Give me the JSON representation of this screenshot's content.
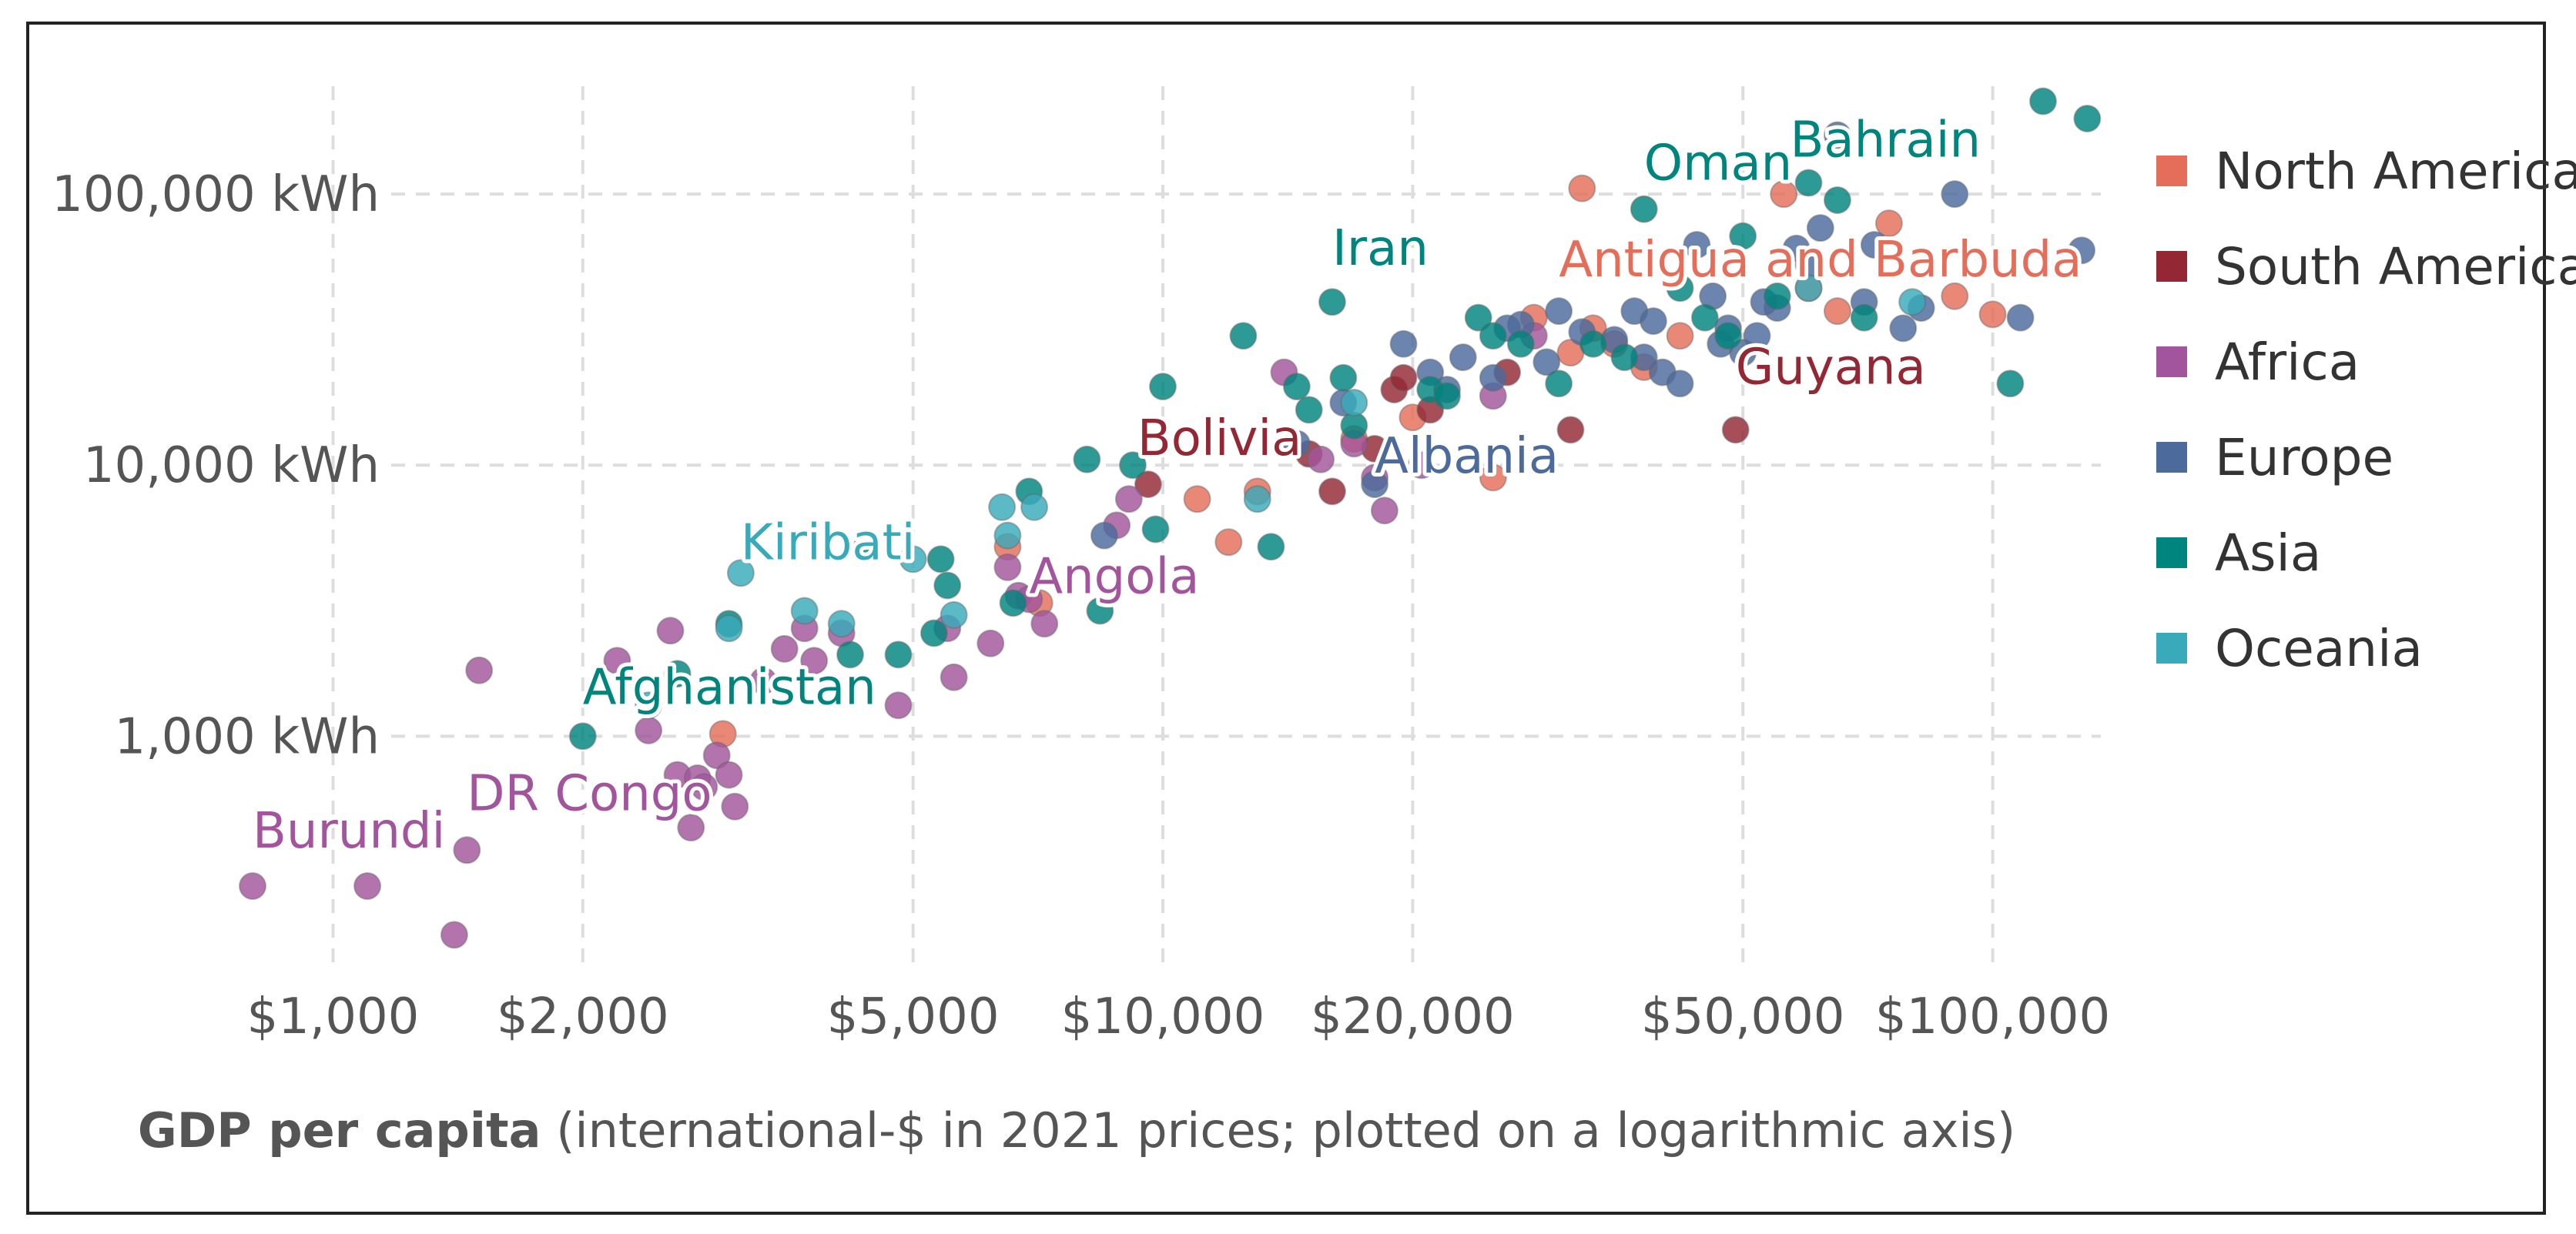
{
  "colors": {
    "North America": "#e56e5a",
    "South America": "#932834",
    "Africa": "#a2559c",
    "Europe": "#4c6a9c",
    "Asia": "#00847e",
    "Oceania": "#38aaba",
    "grid": "#dddddd"
  },
  "chart_data": {
    "type": "scatter",
    "xscale": "log",
    "yscale": "log",
    "xlim": [
      800,
      135000
    ],
    "ylim": [
      140,
      250000
    ],
    "grid": true,
    "legend_position": "right",
    "x_ticks": [
      {
        "value": 1000,
        "label": "$1,000"
      },
      {
        "value": 2000,
        "label": "$2,000"
      },
      {
        "value": 5000,
        "label": "$5,000"
      },
      {
        "value": 10000,
        "label": "$10,000"
      },
      {
        "value": 20000,
        "label": "$20,000"
      },
      {
        "value": 50000,
        "label": "$50,000"
      },
      {
        "value": 100000,
        "label": "$100,000"
      }
    ],
    "y_ticks": [
      {
        "value": 1000,
        "label": "1,000 kWh"
      },
      {
        "value": 10000,
        "label": "10,000 kWh"
      },
      {
        "value": 100000,
        "label": "100,000 kWh"
      }
    ],
    "xlabel_bold": "GDP per capita",
    "xlabel_rest": " (international-$ in 2021 prices; plotted on a logarithmic axis)",
    "series": [
      {
        "name": "North America",
        "points": [
          [
            2950,
            1020
          ],
          [
            6500,
            5000
          ],
          [
            7100,
            3100
          ],
          [
            11000,
            7500
          ],
          [
            12000,
            5200
          ],
          [
            13000,
            8000
          ],
          [
            17000,
            12500
          ],
          [
            20000,
            15000
          ],
          [
            25000,
            9000
          ],
          [
            28000,
            35000
          ],
          [
            31000,
            26000
          ],
          [
            32000,
            105000
          ],
          [
            35000,
            28000
          ],
          [
            38000,
            23000
          ],
          [
            42000,
            30000
          ],
          [
            56000,
            100000
          ],
          [
            65000,
            37000
          ],
          [
            75000,
            78000
          ],
          [
            90000,
            42000
          ],
          [
            100000,
            36000
          ],
          [
            60000,
            45000
          ],
          [
            33000,
            32000
          ]
        ]
      },
      {
        "name": "South America",
        "points": [
          [
            9600,
            8500
          ],
          [
            15000,
            11000
          ],
          [
            16000,
            8000
          ],
          [
            19000,
            19000
          ],
          [
            19500,
            21000
          ],
          [
            21000,
            16000
          ],
          [
            26000,
            22000
          ],
          [
            31000,
            13500
          ],
          [
            49000,
            13500
          ],
          [
            18000,
            11500
          ]
        ]
      },
      {
        "name": "Africa",
        "points": [
          [
            800,
            280
          ],
          [
            1100,
            280
          ],
          [
            1400,
            185
          ],
          [
            1500,
            1750
          ],
          [
            1450,
            380
          ],
          [
            2200,
            1900
          ],
          [
            2400,
            1050
          ],
          [
            2550,
            2450
          ],
          [
            2600,
            720
          ],
          [
            2700,
            460
          ],
          [
            2750,
            700
          ],
          [
            2800,
            650
          ],
          [
            2900,
            850
          ],
          [
            3000,
            720
          ],
          [
            3050,
            550
          ],
          [
            3300,
            1600
          ],
          [
            3500,
            2100
          ],
          [
            3700,
            2500
          ],
          [
            3800,
            1900
          ],
          [
            4100,
            2400
          ],
          [
            4800,
            1300
          ],
          [
            5500,
            2500
          ],
          [
            5600,
            1650
          ],
          [
            6200,
            2200
          ],
          [
            6500,
            4200
          ],
          [
            6700,
            3300
          ],
          [
            6900,
            3200
          ],
          [
            7200,
            2600
          ],
          [
            8800,
            6000
          ],
          [
            9100,
            7500
          ],
          [
            14000,
            22000
          ],
          [
            17000,
            12000
          ],
          [
            18500,
            6800
          ],
          [
            18000,
            9000
          ],
          [
            28000,
            30000
          ],
          [
            25000,
            18000
          ],
          [
            15500,
            10500
          ],
          [
            20500,
            10000
          ]
        ]
      },
      {
        "name": "Europe",
        "points": [
          [
            8500,
            5500
          ],
          [
            14500,
            12000
          ],
          [
            16500,
            17000
          ],
          [
            18000,
            8500
          ],
          [
            19500,
            28000
          ],
          [
            21000,
            22000
          ],
          [
            23000,
            25000
          ],
          [
            25000,
            21000
          ],
          [
            27000,
            33000
          ],
          [
            30000,
            37000
          ],
          [
            32000,
            31000
          ],
          [
            35000,
            29000
          ],
          [
            37000,
            37000
          ],
          [
            39000,
            34000
          ],
          [
            40000,
            22000
          ],
          [
            42000,
            20000
          ],
          [
            44000,
            65000
          ],
          [
            46000,
            42000
          ],
          [
            48000,
            32000
          ],
          [
            50000,
            26000
          ],
          [
            52000,
            30000
          ],
          [
            55000,
            38000
          ],
          [
            58000,
            63000
          ],
          [
            62000,
            75000
          ],
          [
            65000,
            165000
          ],
          [
            70000,
            40000
          ],
          [
            72000,
            65000
          ],
          [
            78000,
            32000
          ],
          [
            82000,
            38000
          ],
          [
            90000,
            100000
          ],
          [
            108000,
            35000
          ],
          [
            128000,
            62000
          ],
          [
            38000,
            25000
          ],
          [
            47000,
            28000
          ],
          [
            53000,
            40000
          ],
          [
            60000,
            55000
          ],
          [
            22000,
            19000
          ],
          [
            26000,
            32000
          ],
          [
            29000,
            24000
          ]
        ]
      },
      {
        "name": "Asia",
        "points": [
          [
            2000,
            1000
          ],
          [
            2600,
            1700
          ],
          [
            3000,
            2600
          ],
          [
            4200,
            2000
          ],
          [
            4400,
            5000
          ],
          [
            4800,
            2000
          ],
          [
            5300,
            2400
          ],
          [
            5400,
            4500
          ],
          [
            5500,
            3600
          ],
          [
            6600,
            3100
          ],
          [
            6900,
            8000
          ],
          [
            8100,
            10500
          ],
          [
            8400,
            2900
          ],
          [
            9200,
            10000
          ],
          [
            9800,
            5800
          ],
          [
            10000,
            19500
          ],
          [
            12500,
            30000
          ],
          [
            13500,
            5000
          ],
          [
            14500,
            19500
          ],
          [
            15000,
            16000
          ],
          [
            16000,
            40000
          ],
          [
            16500,
            21000
          ],
          [
            17000,
            14000
          ],
          [
            21000,
            19000
          ],
          [
            22000,
            18000
          ],
          [
            24000,
            35000
          ],
          [
            25000,
            30000
          ],
          [
            30000,
            20000
          ],
          [
            33000,
            28000
          ],
          [
            36000,
            25000
          ],
          [
            38000,
            88000
          ],
          [
            42000,
            45000
          ],
          [
            45000,
            35000
          ],
          [
            50000,
            70000
          ],
          [
            55000,
            42000
          ],
          [
            60000,
            110000
          ],
          [
            65000,
            95000
          ],
          [
            70000,
            35000
          ],
          [
            105000,
            20000
          ],
          [
            115000,
            220000
          ],
          [
            130000,
            190000
          ],
          [
            27000,
            28000
          ],
          [
            48000,
            30000
          ]
        ]
      },
      {
        "name": "Oceania",
        "points": [
          [
            2400,
            1300
          ],
          [
            3000,
            2500
          ],
          [
            3100,
            4000
          ],
          [
            3700,
            2900
          ],
          [
            4100,
            2600
          ],
          [
            5000,
            4500
          ],
          [
            5600,
            2800
          ],
          [
            6400,
            7000
          ],
          [
            6500,
            5500
          ],
          [
            7000,
            7000
          ],
          [
            13000,
            7500
          ],
          [
            17000,
            17000
          ],
          [
            60000,
            45000
          ],
          [
            80000,
            40000
          ]
        ]
      }
    ],
    "annotations": [
      {
        "text": "Burundi",
        "series": "Africa",
        "x": 800,
        "y": 280
      },
      {
        "text": "DR Congo",
        "series": "Africa",
        "x": 1450,
        "y": 380
      },
      {
        "text": "Afghanistan",
        "series": "Asia",
        "x": 2000,
        "y": 1000
      },
      {
        "text": "Kiribati",
        "series": "Oceania",
        "x": 3100,
        "y": 4000
      },
      {
        "text": "Angola",
        "series": "Africa",
        "x": 6900,
        "y": 3200
      },
      {
        "text": "Bolivia",
        "series": "South America",
        "x": 9600,
        "y": 8500
      },
      {
        "text": "Albania",
        "series": "Europe",
        "x": 18000,
        "y": 8500
      },
      {
        "text": "Iran",
        "series": "Asia",
        "x": 16000,
        "y": 40000
      },
      {
        "text": "Antigua and Barbuda",
        "series": "North America",
        "x": 32000,
        "y": 31000
      },
      {
        "text": "Guyana",
        "series": "South America",
        "x": 49000,
        "y": 13500
      },
      {
        "text": "Oman",
        "series": "Asia",
        "x": 38000,
        "y": 88000
      },
      {
        "text": "Bahrain",
        "series": "Asia",
        "x": 60000,
        "y": 110000
      }
    ]
  }
}
